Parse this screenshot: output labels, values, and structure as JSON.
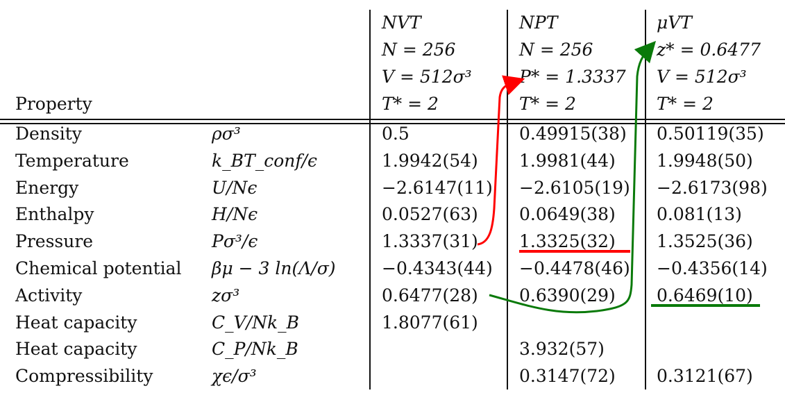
{
  "header": {
    "property_label": "Property",
    "columns": [
      {
        "lines": [
          "NVT",
          "N = 256",
          "V = 512σ³",
          "T* = 2"
        ]
      },
      {
        "lines": [
          "NPT",
          "N = 256",
          "P* = 1.3337",
          "T* = 2"
        ]
      },
      {
        "lines": [
          "μVT",
          "z* = 0.6477",
          "V = 512σ³",
          "T* = 2"
        ]
      }
    ]
  },
  "rows": [
    {
      "name": "Density",
      "symbol": "ρσ³",
      "values": [
        "0.5",
        "0.49915(38)",
        "0.50119(35)"
      ]
    },
    {
      "name": "Temperature",
      "symbol": "k_BT_conf/ϵ",
      "values": [
        "1.9942(54)",
        "1.9981(44)",
        "1.9948(50)"
      ]
    },
    {
      "name": "Energy",
      "symbol": "U/Nϵ",
      "values": [
        "−2.6147(11)",
        "−2.6105(19)",
        "−2.6173(98)"
      ]
    },
    {
      "name": "Enthalpy",
      "symbol": "H/Nϵ",
      "values": [
        "0.0527(63)",
        "0.0649(38)",
        "0.081(13)"
      ]
    },
    {
      "name": "Pressure",
      "symbol": "Pσ³/ϵ",
      "values": [
        "1.3337(31)",
        "1.3325(32)",
        "1.3525(36)"
      ]
    },
    {
      "name": "Chemical potential",
      "symbol": "βμ − 3 ln(Λ/σ)",
      "values": [
        "−0.4343(44)",
        "−0.4478(46)",
        "−0.4356(14)"
      ]
    },
    {
      "name": "Activity",
      "symbol": "zσ³",
      "values": [
        "0.6477(28)",
        "0.6390(29)",
        "0.6469(10)"
      ]
    },
    {
      "name": "Heat capacity",
      "symbol": "C_V/Nk_B",
      "values": [
        "1.8077(61)",
        "",
        ""
      ]
    },
    {
      "name": "Heat capacity",
      "symbol": "C_P/Nk_B",
      "values": [
        "",
        "3.932(57)",
        ""
      ]
    },
    {
      "name": "Compressibility",
      "symbol": "χϵ/σ³",
      "values": [
        "",
        "0.3147(72)",
        "0.3121(67)"
      ]
    }
  ],
  "annotations": {
    "red": "#ff0000",
    "green": "#0a7a0a"
  }
}
